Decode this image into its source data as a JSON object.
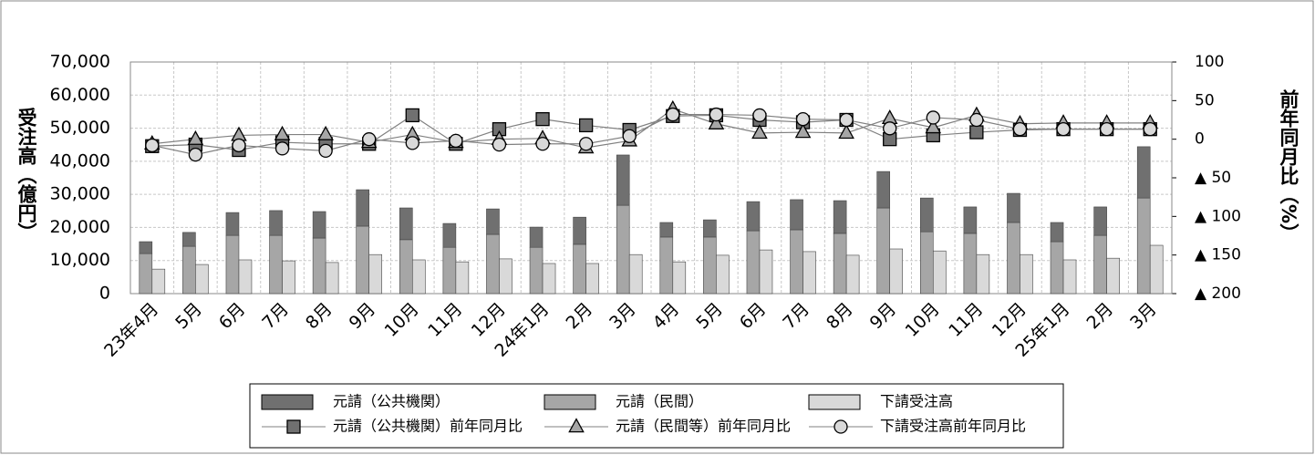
{
  "chart_data": {
    "type": "bar",
    "categories": [
      "23年4月",
      "5月",
      "6月",
      "7月",
      "8月",
      "9月",
      "10月",
      "11月",
      "12月",
      "24年1月",
      "2月",
      "3月",
      "4月",
      "5月",
      "6月",
      "7月",
      "8月",
      "9月",
      "10月",
      "11月",
      "12月",
      "25年1月",
      "2月",
      "3月"
    ],
    "y_label": "受注高（億円）",
    "y2_label": "前年同月比（%）",
    "ylim": [
      0,
      70000
    ],
    "yticks": [
      {
        "value": 0,
        "label": "0"
      },
      {
        "value": 10000,
        "label": "10,000"
      },
      {
        "value": 20000,
        "label": "20,000"
      },
      {
        "value": 30000,
        "label": "30,000"
      },
      {
        "value": 40000,
        "label": "40,000"
      },
      {
        "value": 50000,
        "label": "50,000"
      },
      {
        "value": 60000,
        "label": "60,000"
      },
      {
        "value": 70000,
        "label": "70,000"
      }
    ],
    "y2lim": [
      -200,
      100
    ],
    "y2ticks": [
      100,
      50,
      0,
      {
        "value": -50,
        "label": "▲ 50"
      },
      {
        "value": -100,
        "label": "▲ 100"
      },
      {
        "value": -150,
        "label": "▲ 150"
      },
      {
        "value": -200,
        "label": "▲ 200"
      }
    ],
    "grid": true,
    "legend": "bottom",
    "series": [
      {
        "name": "元請（公共機関）",
        "type": "bar",
        "color": "#707070",
        "values": [
          3600,
          4200,
          6900,
          7500,
          8000,
          11000,
          9600,
          7200,
          7700,
          6100,
          8200,
          15200,
          4400,
          5200,
          8800,
          9100,
          9900,
          11000,
          10200,
          8000,
          8800,
          5800,
          8600,
          15500
        ]
      },
      {
        "name": "元請（民間）",
        "type": "bar",
        "color": "#a6a6a6",
        "values": [
          12100,
          14300,
          17600,
          17600,
          16800,
          20400,
          16300,
          14000,
          17900,
          14000,
          14900,
          26700,
          17100,
          17100,
          19000,
          19300,
          18200,
          25900,
          18700,
          18200,
          21500,
          15700,
          17600,
          28900
        ]
      },
      {
        "name": "下請受注高",
        "type": "bar",
        "color": "#d9d9d9",
        "values": [
          7400,
          8800,
          10200,
          9900,
          9400,
          11800,
          10200,
          9600,
          10500,
          9100,
          9100,
          11800,
          9600,
          11600,
          13200,
          12700,
          11600,
          13500,
          12900,
          11800,
          11800,
          10200,
          10700,
          14600
        ]
      },
      {
        "name": "元請（公共機関）前年同月比",
        "type": "line",
        "axis": "y2",
        "marker": "square",
        "color": "#707070",
        "values": [
          -9,
          -7,
          -14,
          -4,
          -6,
          -6,
          31,
          -6,
          13,
          26,
          18,
          12,
          30,
          31,
          25,
          22,
          25,
          0,
          5,
          9,
          12,
          13,
          13,
          13
        ]
      },
      {
        "name": "元請（民間等）前年同月比",
        "type": "line",
        "axis": "y2",
        "marker": "triangle",
        "color": "#a6a6a6",
        "values": [
          -6,
          0,
          5,
          6,
          6,
          -4,
          6,
          -4,
          0,
          1,
          -11,
          -2,
          39,
          20,
          8,
          9,
          8,
          27,
          15,
          31,
          20,
          21,
          21,
          21
        ]
      },
      {
        "name": "下請受注高前年同月比",
        "type": "line",
        "axis": "y2",
        "marker": "circle",
        "color": "#d9d9d9",
        "values": [
          -8,
          -20,
          -8,
          -12,
          -15,
          0,
          -5,
          -2,
          -7,
          -6,
          -6,
          4,
          32,
          32,
          31,
          26,
          25,
          14,
          28,
          25,
          13,
          13,
          13,
          13
        ]
      }
    ]
  }
}
